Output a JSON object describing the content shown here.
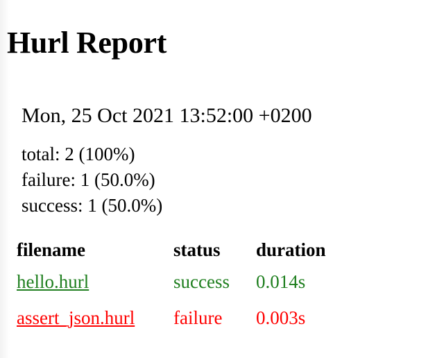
{
  "report": {
    "title": "Hurl Report",
    "date": "Mon, 25 Oct 2021 13:52:00 +0200"
  },
  "summary": {
    "total": "total: 2 (100%)",
    "failure": "failure: 1 (50.0%)",
    "success": "success: 1 (50.0%)"
  },
  "table": {
    "headers": {
      "filename": "filename",
      "status": "status",
      "duration": "duration"
    },
    "rows": [
      {
        "filename": "hello.hurl",
        "status": "success",
        "duration": "0.014s"
      },
      {
        "filename": "assert_json.hurl",
        "status": "failure",
        "duration": "0.003s"
      }
    ]
  },
  "colors": {
    "success": "#1f7f1f",
    "failure": "#ff0000"
  }
}
